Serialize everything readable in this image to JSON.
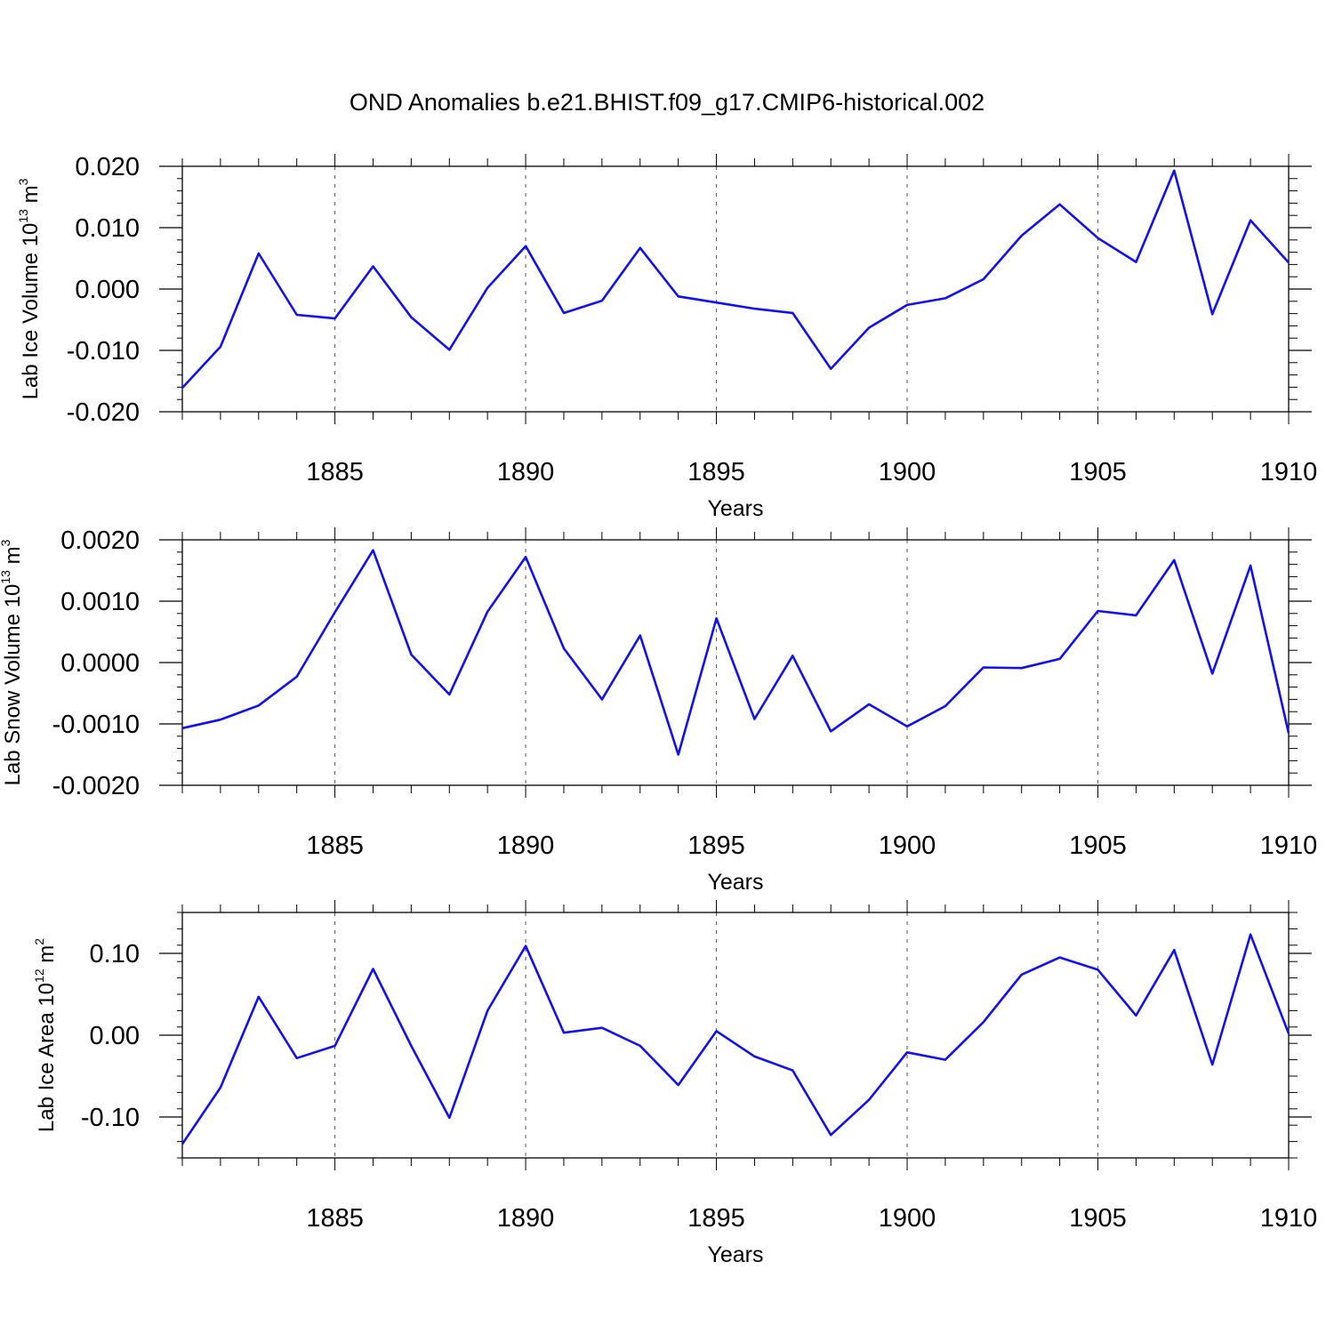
{
  "figure_title": "OND Anomalies b.e21.BHIST.f09_g17.CMIP6-historical.002",
  "colors": {
    "line": "#1010f0",
    "axis": "#000000",
    "grid": "#555555"
  },
  "chart_data": [
    {
      "type": "line",
      "title": "OND Anomalies b.e21.BHIST.f09_g17.CMIP6-historical.002",
      "xlabel": "Years",
      "ylabel": {
        "text": "Lab Ice Volume 10",
        "exp": "13",
        "unit": " m",
        "unit_exp": "3"
      },
      "xlim": [
        1881,
        1910
      ],
      "ylim": [
        -0.02,
        0.02
      ],
      "xticks": [
        "1885",
        "1890",
        "1895",
        "1900",
        "1905",
        "1910"
      ],
      "yticks": [
        "0.020",
        "0.010",
        "0.000",
        "-0.010",
        "-0.020"
      ],
      "ytick_values": [
        0.02,
        0.01,
        0.0,
        -0.01,
        -0.02
      ],
      "series": [
        {
          "name": "Lab Ice Volume",
          "x": [
            1881,
            1882,
            1883,
            1884,
            1885,
            1886,
            1887,
            1888,
            1889,
            1890,
            1891,
            1892,
            1893,
            1894,
            1895,
            1896,
            1897,
            1898,
            1899,
            1900,
            1901,
            1902,
            1903,
            1904,
            1905,
            1906,
            1907,
            1908,
            1909,
            1910
          ],
          "values": [
            -0.0161,
            -0.0094,
            0.0058,
            -0.0042,
            -0.0048,
            0.0037,
            -0.0046,
            -0.0099,
            0.0002,
            0.007,
            -0.0039,
            -0.0019,
            0.0067,
            -0.0012,
            -0.0022,
            -0.0032,
            -0.0039,
            -0.013,
            -0.0063,
            -0.0026,
            -0.0015,
            0.0016,
            0.0087,
            0.0138,
            0.0083,
            0.0044,
            0.0193,
            -0.0041,
            0.0112,
            0.0043
          ]
        }
      ]
    },
    {
      "type": "line",
      "xlabel": "Years",
      "ylabel": {
        "text": "Lab Snow Volume 10",
        "exp": "13",
        "unit": " m",
        "unit_exp": "3"
      },
      "xlim": [
        1881,
        1910
      ],
      "ylim": [
        -0.002,
        0.002
      ],
      "xticks": [
        "1885",
        "1890",
        "1895",
        "1900",
        "1905",
        "1910"
      ],
      "yticks": [
        "0.0020",
        "0.0010",
        "0.0000",
        "-0.0010",
        "-0.0020"
      ],
      "ytick_values": [
        0.002,
        0.001,
        0.0,
        -0.001,
        -0.002
      ],
      "series": [
        {
          "name": "Lab Snow Volume",
          "x": [
            1881,
            1882,
            1883,
            1884,
            1885,
            1886,
            1887,
            1888,
            1889,
            1890,
            1891,
            1892,
            1893,
            1894,
            1895,
            1896,
            1897,
            1898,
            1899,
            1900,
            1901,
            1902,
            1903,
            1904,
            1905,
            1906,
            1907,
            1908,
            1909,
            1910
          ],
          "values": [
            -0.00107,
            -0.00093,
            -0.0007,
            -0.00023,
            0.00082,
            0.00183,
            0.00013,
            -0.00052,
            0.00083,
            0.00172,
            0.00023,
            -0.0006,
            0.00044,
            -0.0015,
            0.00072,
            -0.00092,
            0.00011,
            -0.00112,
            -0.00068,
            -0.00104,
            -0.00071,
            -8e-05,
            -9e-05,
            6e-05,
            0.00084,
            0.00077,
            0.00167,
            -0.00018,
            0.00158,
            -0.00115
          ]
        }
      ]
    },
    {
      "type": "line",
      "xlabel": "Years",
      "ylabel": {
        "text": "Lab Ice Area 10",
        "exp": "12",
        "unit": " m",
        "unit_exp": "2"
      },
      "xlim": [
        1881,
        1910
      ],
      "ylim": [
        -0.15,
        0.15
      ],
      "xticks": [
        "1885",
        "1890",
        "1895",
        "1900",
        "1905",
        "1910"
      ],
      "yticks": [
        "0.10",
        "0.00",
        "-0.10"
      ],
      "ytick_values": [
        0.1,
        0.0,
        -0.1
      ],
      "series": [
        {
          "name": "Lab Ice Area",
          "x": [
            1881,
            1882,
            1883,
            1884,
            1885,
            1886,
            1887,
            1888,
            1889,
            1890,
            1891,
            1892,
            1893,
            1894,
            1895,
            1896,
            1897,
            1898,
            1899,
            1900,
            1901,
            1902,
            1903,
            1904,
            1905,
            1906,
            1907,
            1908,
            1909,
            1910
          ],
          "values": [
            -0.133,
            -0.064,
            0.047,
            -0.028,
            -0.013,
            0.081,
            -0.013,
            -0.101,
            0.03,
            0.109,
            0.003,
            0.009,
            -0.013,
            -0.061,
            0.005,
            -0.026,
            -0.043,
            -0.122,
            -0.079,
            -0.021,
            -0.03,
            0.016,
            0.074,
            0.095,
            0.08,
            0.024,
            0.104,
            -0.036,
            0.123,
            0.002
          ]
        }
      ]
    }
  ]
}
